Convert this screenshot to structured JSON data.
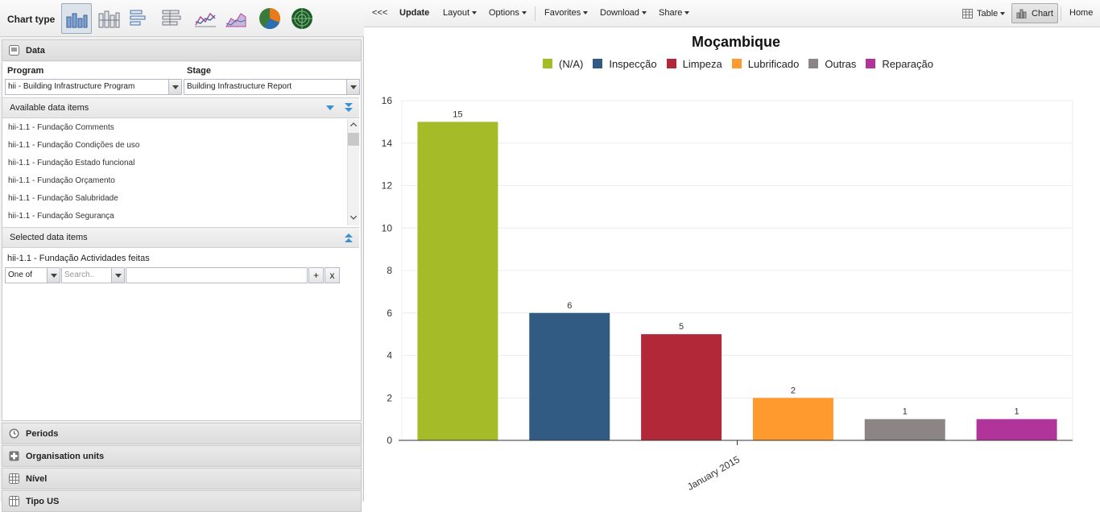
{
  "left": {
    "chart_type_label": "Chart type",
    "chart_types": [
      "column",
      "stacked-column",
      "bar",
      "stacked-bar",
      "line",
      "area",
      "pie",
      "radar"
    ],
    "sections": {
      "data": "Data",
      "periods": "Periods",
      "orgunits": "Organisation units",
      "nivel": "Nível",
      "tipo": "Tipo US"
    },
    "program_label": "Program",
    "stage_label": "Stage",
    "program_value": "hii - Building Infrastructure Program",
    "stage_value": "Building Infrastructure Report",
    "available_label": "Available data items",
    "available_items": [
      "hii-1.1 - Fundação Comments",
      "hii-1.1 - Fundação Condições de uso",
      "hii-1.1 - Fundação Estado funcional",
      "hii-1.1 - Fundação Orçamento",
      "hii-1.1 - Fundação Salubridade",
      "hii-1.1 - Fundação Segurança"
    ],
    "selected_label": "Selected data items",
    "selected_item": "hii-1.1 - Fundação Actividades feitas",
    "operator_value": "One of",
    "search_placeholder": "Search..",
    "filter_value": "",
    "add_label": "+",
    "remove_label": "x"
  },
  "toolbar": {
    "collapse": "<<<",
    "update": "Update",
    "layout": "Layout",
    "options": "Options",
    "favorites": "Favorites",
    "download": "Download",
    "share": "Share",
    "table": "Table",
    "chart": "Chart",
    "home": "Home"
  },
  "chart_data": {
    "type": "bar",
    "title": "Moçambique",
    "xlabel": "",
    "ylabel": "",
    "categories": [
      "January 2015"
    ],
    "series": [
      {
        "name": "(N/A)",
        "values": [
          15
        ],
        "color": "#a5bc28"
      },
      {
        "name": "Inspecção",
        "values": [
          6
        ],
        "color": "#315b83"
      },
      {
        "name": "Limpeza",
        "values": [
          5
        ],
        "color": "#b22838"
      },
      {
        "name": "Lubrificado",
        "values": [
          2
        ],
        "color": "#ff9a2e"
      },
      {
        "name": "Outras",
        "values": [
          1
        ],
        "color": "#8b8585"
      },
      {
        "name": "Reparação",
        "values": [
          1
        ],
        "color": "#b0349a"
      }
    ],
    "ylim": [
      0,
      16
    ],
    "yticks": [
      0,
      2,
      4,
      6,
      8,
      10,
      12,
      14,
      16
    ],
    "grid": true,
    "legend": "top"
  }
}
